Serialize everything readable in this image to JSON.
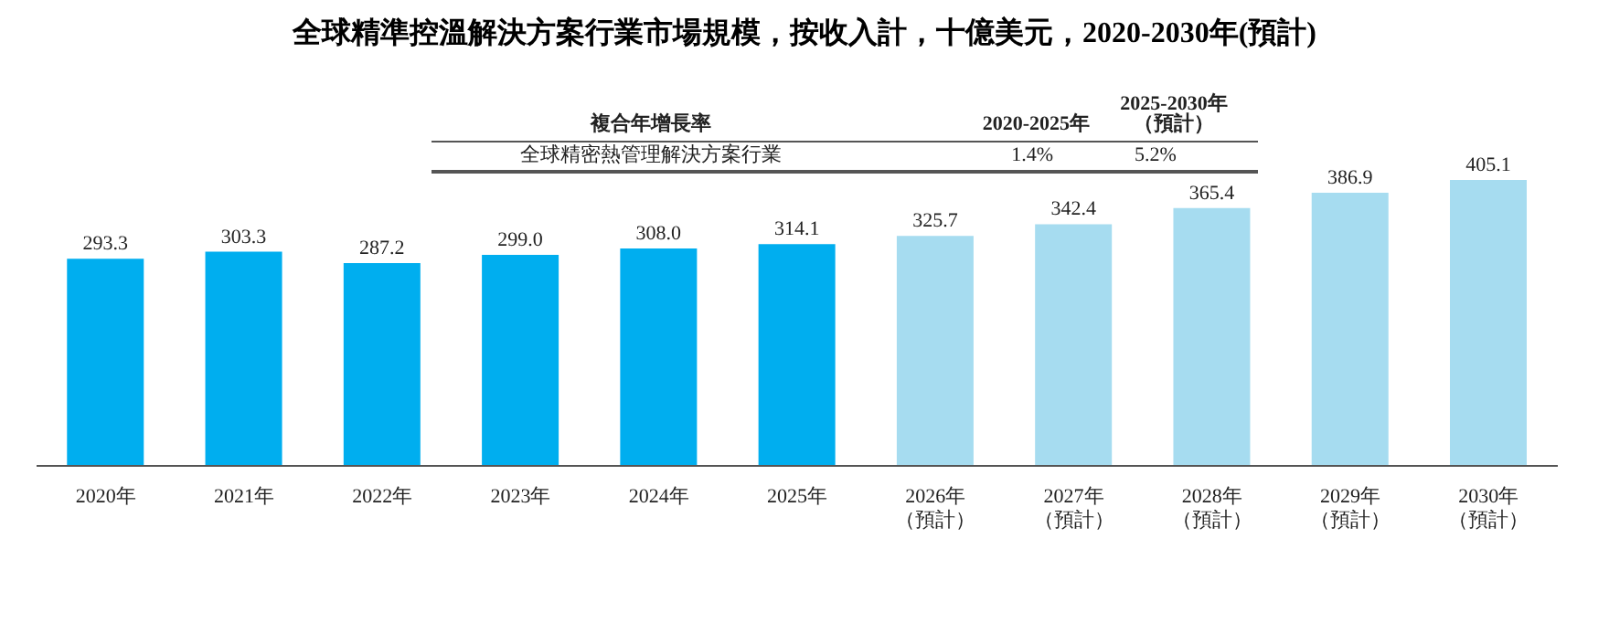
{
  "chart_data": {
    "type": "bar",
    "title": "全球精準控溫解決方案行業市場規模，按收入計，十億美元，2020-2030年(預計)",
    "categories": [
      "2020年",
      "2021年",
      "2022年",
      "2023年",
      "2024年",
      "2025年",
      "2026年（預計）",
      "2027年（預計）",
      "2028年（預計）",
      "2029年（預計）",
      "2030年（預計）"
    ],
    "values": [
      293.3,
      303.3,
      287.2,
      299.0,
      308.0,
      314.1,
      325.7,
      342.4,
      365.4,
      386.9,
      405.1
    ],
    "colors": [
      "#00aeef",
      "#00aeef",
      "#00aeef",
      "#00aeef",
      "#00aeef",
      "#00aeef",
      "#a6dcf0",
      "#a6dcf0",
      "#a6dcf0",
      "#a6dcf0",
      "#a6dcf0"
    ],
    "value_labels": [
      "293.3",
      "303.3",
      "287.2",
      "299.0",
      "308.0",
      "314.1",
      "325.7",
      "342.4",
      "365.4",
      "386.9",
      "405.1"
    ],
    "grid": false,
    "legend": false,
    "annotations": [
      "複合年增長率",
      "2020-2025年",
      "2025-2030年（預計）",
      "全球精密熱管理解決方案行業",
      "1.4%",
      "5.2%"
    ]
  }
}
